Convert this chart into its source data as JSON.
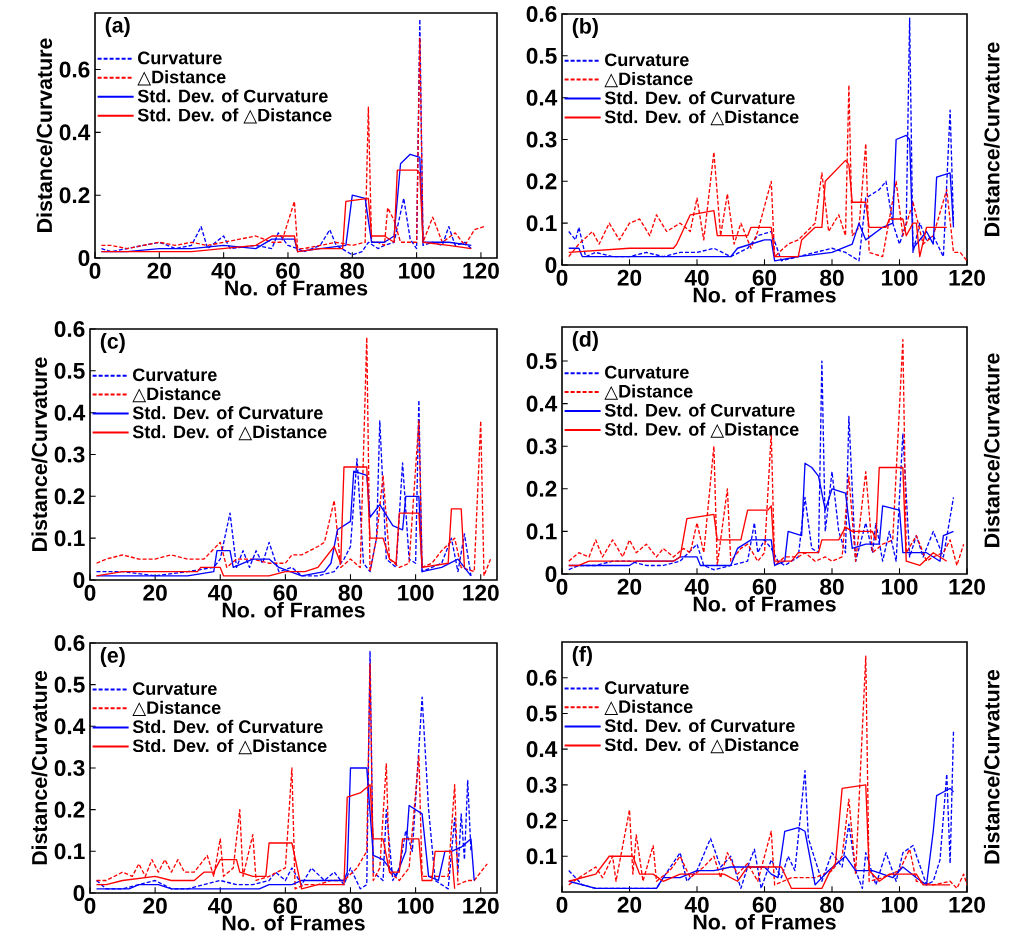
{
  "chart_data": [
    {
      "type": "line",
      "annotations": [
        "(a)"
      ],
      "xlabel": "No. of Frames",
      "ylabel": "Distance/Curvature",
      "xlim": [
        0,
        125
      ],
      "ylim": [
        0,
        0.78
      ],
      "xticks": [
        0,
        20,
        40,
        60,
        80,
        100,
        120
      ],
      "yticks": [
        0,
        0.2,
        0.4,
        0.6
      ],
      "legend": "top left",
      "series": [
        {
          "name": "Curvature",
          "color": "#0000ff",
          "line_style": "dashed",
          "x": [
            2,
            5,
            10,
            15,
            20,
            25,
            30,
            33,
            35,
            40,
            42,
            50,
            55,
            57,
            60,
            63,
            65,
            70,
            73,
            75,
            80,
            83,
            85,
            88,
            90,
            93,
            96,
            98,
            100,
            101,
            102,
            105,
            108,
            110,
            112,
            115,
            117
          ],
          "values": [
            0.03,
            0.02,
            0.03,
            0.04,
            0.05,
            0.03,
            0.04,
            0.1,
            0.03,
            0.07,
            0.03,
            0.04,
            0.03,
            0.08,
            0.04,
            0.03,
            0.02,
            0.04,
            0.09,
            0.04,
            0.01,
            0.02,
            0.05,
            0.03,
            0.04,
            0.05,
            0.19,
            0.06,
            0.03,
            0.76,
            0.04,
            0.05,
            0.04,
            0.1,
            0.04,
            0.05,
            0.03
          ]
        },
        {
          "name": "△Distance",
          "color": "#ff0000",
          "line_style": "dashed",
          "x": [
            2,
            5,
            10,
            15,
            20,
            25,
            30,
            35,
            40,
            45,
            50,
            55,
            58,
            62,
            63,
            65,
            70,
            75,
            80,
            84,
            85,
            86,
            88,
            90,
            91,
            93,
            95,
            100,
            101,
            102,
            105,
            108,
            112,
            115,
            118,
            121
          ],
          "values": [
            0.04,
            0.04,
            0.03,
            0.04,
            0.05,
            0.04,
            0.05,
            0.04,
            0.05,
            0.06,
            0.07,
            0.05,
            0.05,
            0.18,
            0.03,
            0.03,
            0.04,
            0.05,
            0.04,
            0.05,
            0.48,
            0.05,
            0.05,
            0.04,
            0.16,
            0.12,
            0.05,
            0.05,
            0.7,
            0.05,
            0.13,
            0.05,
            0.08,
            0.04,
            0.09,
            0.1
          ]
        },
        {
          "name": "Std. Dev. of Curvature",
          "color": "#0000ff",
          "line_style": "solid",
          "x": [
            2,
            10,
            20,
            30,
            40,
            50,
            55,
            62,
            63,
            70,
            78,
            80,
            84,
            86,
            90,
            93,
            95,
            98,
            101,
            102,
            110,
            117
          ],
          "values": [
            0.02,
            0.02,
            0.03,
            0.03,
            0.04,
            0.03,
            0.06,
            0.06,
            0.02,
            0.03,
            0.04,
            0.2,
            0.19,
            0.05,
            0.05,
            0.07,
            0.3,
            0.33,
            0.32,
            0.05,
            0.05,
            0.04
          ]
        },
        {
          "name": "Std. Dev. of △Distance",
          "color": "#ff0000",
          "line_style": "solid",
          "x": [
            2,
            10,
            20,
            30,
            40,
            50,
            55,
            62,
            63,
            70,
            77,
            78,
            85,
            86,
            90,
            93,
            94,
            100,
            101,
            102,
            110,
            117
          ],
          "values": [
            0.02,
            0.02,
            0.02,
            0.02,
            0.03,
            0.04,
            0.07,
            0.07,
            0.02,
            0.03,
            0.03,
            0.18,
            0.19,
            0.07,
            0.07,
            0.05,
            0.28,
            0.28,
            0.27,
            0.05,
            0.04,
            0.03
          ]
        }
      ]
    },
    {
      "type": "line",
      "annotations": [
        "(b)"
      ],
      "xlabel": "No. of Frames",
      "ylabel": "Distance/Curvature",
      "xlim": [
        0,
        120
      ],
      "ylim": [
        0,
        0.6
      ],
      "xticks": [
        0,
        20,
        40,
        60,
        80,
        100,
        120
      ],
      "yticks": [
        0,
        0.1,
        0.2,
        0.3,
        0.4,
        0.5,
        0.6
      ],
      "legend": "top left",
      "series": [
        {
          "name": "Curvature",
          "color": "#0000ff",
          "line_style": "dashed",
          "x": [
            2,
            4,
            5,
            7,
            10,
            15,
            20,
            25,
            30,
            35,
            40,
            45,
            50,
            55,
            58,
            62,
            65,
            70,
            75,
            80,
            84,
            88,
            90,
            92,
            94,
            96,
            98,
            100,
            102,
            103,
            104,
            106,
            108,
            110,
            113,
            115,
            116
          ],
          "values": [
            0.08,
            0.06,
            0.09,
            0.02,
            0.03,
            0.02,
            0.02,
            0.03,
            0.02,
            0.03,
            0.03,
            0.04,
            0.02,
            0.04,
            0.07,
            0.08,
            0.01,
            0.02,
            0.03,
            0.04,
            0.03,
            0.01,
            0.16,
            0.17,
            0.18,
            0.2,
            0.1,
            0.05,
            0.1,
            0.59,
            0.03,
            0.1,
            0.06,
            0.07,
            0.02,
            0.37,
            0.1
          ]
        },
        {
          "name": "△Distance",
          "color": "#ff0000",
          "line_style": "dashed",
          "x": [
            2,
            5,
            9,
            11,
            14,
            17,
            20,
            23,
            26,
            28,
            31,
            35,
            38,
            40,
            42,
            45,
            47,
            49,
            51,
            53,
            56,
            58,
            62,
            63,
            67,
            70,
            75,
            77,
            79,
            82,
            84,
            85,
            86,
            88,
            90,
            91,
            95,
            99,
            101,
            104,
            107,
            110,
            114,
            116,
            118,
            120
          ],
          "values": [
            0.02,
            0.05,
            0.08,
            0.05,
            0.1,
            0.06,
            0.1,
            0.11,
            0.07,
            0.12,
            0.08,
            0.1,
            0.08,
            0.16,
            0.06,
            0.27,
            0.07,
            0.17,
            0.05,
            0.1,
            0.04,
            0.08,
            0.2,
            0.02,
            0.05,
            0.06,
            0.1,
            0.22,
            0.08,
            0.12,
            0.07,
            0.43,
            0.07,
            0.09,
            0.29,
            0.03,
            0.02,
            0.2,
            0.07,
            0.15,
            0.05,
            0.07,
            0.18,
            0.03,
            0.03,
            0.01
          ]
        },
        {
          "name": "Std. Dev. of Curvature",
          "color": "#0000ff",
          "line_style": "solid",
          "x": [
            2,
            5,
            6,
            20,
            40,
            50,
            52,
            60,
            62,
            63,
            70,
            80,
            86,
            88,
            90,
            95,
            98,
            99,
            102,
            103,
            104,
            108,
            110,
            111,
            115,
            116
          ],
          "values": [
            0.04,
            0.04,
            0.02,
            0.02,
            0.02,
            0.02,
            0.04,
            0.06,
            0.06,
            0.01,
            0.02,
            0.03,
            0.05,
            0.1,
            0.06,
            0.09,
            0.1,
            0.3,
            0.31,
            0.3,
            0.04,
            0.08,
            0.05,
            0.21,
            0.22,
            0.09
          ]
        },
        {
          "name": "Std. Dev. of △Distance",
          "color": "#ff0000",
          "line_style": "solid",
          "x": [
            2,
            20,
            33,
            34,
            38,
            45,
            46,
            55,
            56,
            62,
            63,
            70,
            71,
            75,
            77,
            78,
            84,
            85,
            86,
            90,
            91,
            96,
            97,
            101,
            102,
            104,
            105,
            106,
            108,
            114
          ],
          "values": [
            0.03,
            0.04,
            0.04,
            0.05,
            0.12,
            0.13,
            0.07,
            0.07,
            0.09,
            0.09,
            0.02,
            0.02,
            0.06,
            0.09,
            0.09,
            0.2,
            0.25,
            0.24,
            0.15,
            0.15,
            0.09,
            0.09,
            0.11,
            0.11,
            0.07,
            0.1,
            0.1,
            0.02,
            0.09,
            0.09
          ]
        }
      ]
    },
    {
      "type": "line",
      "annotations": [
        "(c)"
      ],
      "xlabel": "No. of Frames",
      "ylabel": "Distance/Curvature",
      "xlim": [
        0,
        125
      ],
      "ylim": [
        0,
        0.6
      ],
      "xticks": [
        0,
        20,
        40,
        60,
        80,
        100,
        120
      ],
      "yticks": [
        0,
        0.1,
        0.2,
        0.3,
        0.4,
        0.5,
        0.6
      ],
      "legend": "top left",
      "series": [
        {
          "name": "Curvature",
          "color": "#0000ff",
          "line_style": "dashed",
          "x": [
            2,
            10,
            20,
            30,
            38,
            40,
            43,
            45,
            47,
            49,
            51,
            53,
            55,
            58,
            62,
            65,
            70,
            75,
            78,
            80,
            82,
            84,
            86,
            88,
            89,
            91,
            94,
            96,
            98,
            100,
            101,
            102,
            105,
            108,
            111,
            113,
            115,
            117
          ],
          "values": [
            0.02,
            0.02,
            0.01,
            0.02,
            0.03,
            0.05,
            0.16,
            0.03,
            0.07,
            0.03,
            0.07,
            0.04,
            0.09,
            0.02,
            0.03,
            0.01,
            0.01,
            0.02,
            0.05,
            0.08,
            0.29,
            0.04,
            0.02,
            0.1,
            0.38,
            0.05,
            0.03,
            0.28,
            0.05,
            0.04,
            0.43,
            0.02,
            0.03,
            0.04,
            0.1,
            0.02,
            0.11,
            0.01
          ]
        },
        {
          "name": "△Distance",
          "color": "#ff0000",
          "line_style": "dashed",
          "x": [
            2,
            5,
            10,
            15,
            20,
            25,
            30,
            35,
            40,
            42,
            45,
            50,
            55,
            60,
            62,
            65,
            70,
            72,
            75,
            77,
            80,
            83,
            85,
            86,
            88,
            90,
            92,
            95,
            98,
            101,
            102,
            105,
            108,
            112,
            114,
            118,
            120,
            121,
            123
          ],
          "values": [
            0.04,
            0.05,
            0.06,
            0.05,
            0.05,
            0.06,
            0.05,
            0.05,
            0.09,
            0.03,
            0.05,
            0.05,
            0.04,
            0.04,
            0.06,
            0.06,
            0.08,
            0.09,
            0.19,
            0.03,
            0.05,
            0.03,
            0.58,
            0.02,
            0.1,
            0.25,
            0.05,
            0.03,
            0.04,
            0.38,
            0.03,
            0.04,
            0.07,
            0.1,
            0.03,
            0.02,
            0.38,
            0.01,
            0.05
          ]
        },
        {
          "name": "Std. Dev. of Curvature",
          "color": "#0000ff",
          "line_style": "solid",
          "x": [
            2,
            20,
            30,
            38,
            39,
            43,
            44,
            50,
            55,
            58,
            65,
            72,
            74,
            76,
            80,
            81,
            85,
            86,
            89,
            93,
            96,
            97,
            101,
            102,
            108,
            113,
            117
          ],
          "values": [
            0.01,
            0.01,
            0.01,
            0.02,
            0.07,
            0.07,
            0.03,
            0.05,
            0.05,
            0.03,
            0.01,
            0.02,
            0.04,
            0.12,
            0.14,
            0.26,
            0.25,
            0.15,
            0.18,
            0.13,
            0.12,
            0.2,
            0.2,
            0.02,
            0.03,
            0.05,
            0.01
          ]
        },
        {
          "name": "Std. Dev. of △Distance",
          "color": "#ff0000",
          "line_style": "solid",
          "x": [
            2,
            10,
            33,
            34,
            40,
            41,
            55,
            60,
            66,
            70,
            75,
            77,
            78,
            85,
            86,
            90,
            92,
            94,
            95,
            101,
            102,
            110,
            111,
            114,
            115
          ],
          "values": [
            0.01,
            0.02,
            0.02,
            0.03,
            0.03,
            0.01,
            0.01,
            0.02,
            0.02,
            0.03,
            0.08,
            0.04,
            0.27,
            0.27,
            0.1,
            0.1,
            0.05,
            0.04,
            0.16,
            0.16,
            0.03,
            0.04,
            0.17,
            0.17,
            0.03
          ]
        }
      ]
    },
    {
      "type": "line",
      "annotations": [
        "(d)"
      ],
      "xlabel": "No. of Frames",
      "ylabel": "Distance/Curvature",
      "xlim": [
        0,
        120
      ],
      "ylim": [
        0,
        0.58
      ],
      "xticks": [
        0,
        20,
        40,
        60,
        80,
        100,
        120
      ],
      "yticks": [
        0,
        0.1,
        0.2,
        0.3,
        0.4,
        0.5
      ],
      "legend": "top left",
      "series": [
        {
          "name": "Curvature",
          "color": "#0000ff",
          "line_style": "dashed",
          "x": [
            2,
            5,
            10,
            15,
            20,
            25,
            30,
            35,
            40,
            42,
            45,
            50,
            55,
            57,
            58,
            60,
            62,
            64,
            66,
            70,
            72,
            74,
            76,
            77,
            78,
            80,
            82,
            84,
            85,
            87,
            90,
            92,
            93,
            95,
            97,
            99,
            101,
            103,
            105,
            107,
            110,
            113,
            116
          ],
          "values": [
            0.01,
            0.02,
            0.02,
            0.03,
            0.03,
            0.02,
            0.02,
            0.03,
            0.07,
            0.02,
            0.01,
            0.02,
            0.03,
            0.12,
            0.05,
            0.08,
            0.06,
            0.03,
            0.02,
            0.04,
            0.18,
            0.06,
            0.05,
            0.5,
            0.1,
            0.24,
            0.1,
            0.05,
            0.37,
            0.03,
            0.12,
            0.05,
            0.12,
            0.03,
            0.1,
            0.03,
            0.33,
            0.04,
            0.09,
            0.04,
            0.1,
            0.04,
            0.18
          ]
        },
        {
          "name": "△Distance",
          "color": "#ff0000",
          "line_style": "dashed",
          "x": [
            2,
            5,
            8,
            10,
            12,
            15,
            18,
            20,
            22,
            25,
            28,
            30,
            33,
            36,
            38,
            40,
            42,
            45,
            46,
            49,
            50,
            53,
            55,
            58,
            60,
            62,
            63,
            66,
            70,
            72,
            75,
            78,
            80,
            83,
            85,
            87,
            90,
            92,
            95,
            98,
            101,
            102,
            105,
            108,
            110,
            113,
            115,
            117,
            119
          ],
          "values": [
            0.03,
            0.05,
            0.04,
            0.08,
            0.04,
            0.08,
            0.04,
            0.08,
            0.05,
            0.07,
            0.04,
            0.06,
            0.04,
            0.06,
            0.05,
            0.12,
            0.05,
            0.3,
            0.02,
            0.2,
            0.03,
            0.06,
            0.07,
            0.03,
            0.05,
            0.33,
            0.02,
            0.04,
            0.04,
            0.05,
            0.03,
            0.04,
            0.03,
            0.04,
            0.23,
            0.03,
            0.24,
            0.05,
            0.07,
            0.08,
            0.55,
            0.05,
            0.09,
            0.03,
            0.04,
            0.05,
            0.08,
            0.02,
            0.07
          ]
        },
        {
          "name": "Std. Dev. of Curvature",
          "color": "#0000ff",
          "line_style": "solid",
          "x": [
            2,
            20,
            22,
            33,
            35,
            40,
            41,
            50,
            52,
            56,
            62,
            63,
            66,
            67,
            71,
            72,
            74,
            76,
            78,
            80,
            84,
            86,
            90,
            94,
            95,
            100,
            101,
            108,
            112,
            113,
            116
          ],
          "values": [
            0.02,
            0.02,
            0.03,
            0.03,
            0.04,
            0.04,
            0.02,
            0.02,
            0.06,
            0.08,
            0.08,
            0.02,
            0.03,
            0.1,
            0.09,
            0.26,
            0.25,
            0.23,
            0.15,
            0.2,
            0.19,
            0.06,
            0.07,
            0.07,
            0.16,
            0.15,
            0.05,
            0.05,
            0.03,
            0.09,
            0.1
          ]
        },
        {
          "name": "Std. Dev. of △Distance",
          "color": "#ff0000",
          "line_style": "solid",
          "x": [
            2,
            5,
            8,
            33,
            35,
            37,
            45,
            46,
            53,
            55,
            61,
            62,
            63,
            68,
            70,
            76,
            77,
            82,
            84,
            86,
            92,
            93,
            94,
            101,
            102,
            106,
            110,
            114
          ],
          "values": [
            0.02,
            0.02,
            0.03,
            0.03,
            0.04,
            0.13,
            0.14,
            0.08,
            0.08,
            0.15,
            0.15,
            0.16,
            0.03,
            0.03,
            0.05,
            0.05,
            0.08,
            0.08,
            0.11,
            0.1,
            0.1,
            0.08,
            0.25,
            0.25,
            0.03,
            0.02,
            0.05,
            0.03
          ]
        }
      ]
    },
    {
      "type": "line",
      "annotations": [
        "(e)"
      ],
      "xlabel": "No. of Frames",
      "ylabel": "Distance/Curvature",
      "xlim": [
        0,
        125
      ],
      "ylim": [
        0,
        0.6
      ],
      "xticks": [
        0,
        20,
        40,
        60,
        80,
        100,
        120
      ],
      "yticks": [
        0,
        0.1,
        0.2,
        0.3,
        0.4,
        0.5,
        0.6
      ],
      "legend": "top left",
      "series": [
        {
          "name": "Curvature",
          "color": "#0000ff",
          "line_style": "dashed",
          "x": [
            2,
            5,
            10,
            15,
            20,
            25,
            30,
            35,
            40,
            45,
            50,
            55,
            57,
            60,
            62,
            65,
            68,
            72,
            75,
            78,
            80,
            83,
            85,
            86,
            87,
            90,
            91,
            93,
            95,
            97,
            99,
            102,
            104,
            106,
            110,
            112,
            113,
            114,
            115,
            116,
            117
          ],
          "values": [
            0.03,
            0.01,
            0.01,
            0.02,
            0.03,
            0.01,
            0.01,
            0.02,
            0.03,
            0.02,
            0.02,
            0.03,
            0.05,
            0.03,
            0.06,
            0.02,
            0.06,
            0.03,
            0.05,
            0.02,
            0.06,
            0.01,
            0.02,
            0.58,
            0.05,
            0.03,
            0.2,
            0.03,
            0.06,
            0.15,
            0.1,
            0.47,
            0.2,
            0.03,
            0.01,
            0.18,
            0.05,
            0.19,
            0.08,
            0.27,
            0.1
          ]
        },
        {
          "name": "△Distance",
          "color": "#ff0000",
          "line_style": "dashed",
          "x": [
            2,
            5,
            10,
            13,
            15,
            17,
            19,
            21,
            23,
            25,
            27,
            29,
            32,
            36,
            38,
            40,
            41,
            44,
            46,
            47,
            50,
            51,
            55,
            60,
            62,
            63,
            66,
            70,
            74,
            78,
            82,
            85,
            86,
            87,
            89,
            91,
            92,
            95,
            98,
            101,
            102,
            106,
            110,
            112,
            113,
            116,
            118,
            122
          ],
          "values": [
            0.03,
            0.03,
            0.05,
            0.04,
            0.07,
            0.04,
            0.08,
            0.05,
            0.08,
            0.05,
            0.08,
            0.05,
            0.05,
            0.09,
            0.04,
            0.13,
            0.04,
            0.06,
            0.2,
            0.04,
            0.14,
            0.03,
            0.04,
            0.06,
            0.3,
            0.01,
            0.02,
            0.02,
            0.03,
            0.03,
            0.06,
            0.1,
            0.55,
            0.03,
            0.06,
            0.31,
            0.05,
            0.03,
            0.06,
            0.33,
            0.04,
            0.04,
            0.04,
            0.26,
            0.02,
            0.03,
            0.03,
            0.07
          ]
        },
        {
          "name": "Std. Dev. of Curvature",
          "color": "#0000ff",
          "line_style": "solid",
          "x": [
            2,
            12,
            15,
            21,
            25,
            52,
            55,
            62,
            65,
            78,
            79,
            80,
            85,
            87,
            90,
            94,
            97,
            98,
            102,
            104,
            107,
            109,
            111,
            114,
            117,
            118
          ],
          "values": [
            0.01,
            0.01,
            0.02,
            0.02,
            0.01,
            0.01,
            0.02,
            0.02,
            0.03,
            0.03,
            0.05,
            0.3,
            0.3,
            0.09,
            0.08,
            0.04,
            0.1,
            0.21,
            0.19,
            0.04,
            0.03,
            0.1,
            0.1,
            0.11,
            0.13,
            0.03
          ]
        },
        {
          "name": "Std. Dev. of △Distance",
          "color": "#ff0000",
          "line_style": "solid",
          "x": [
            2,
            5,
            10,
            20,
            25,
            32,
            35,
            38,
            40,
            45,
            46,
            50,
            54,
            55,
            62,
            65,
            70,
            78,
            79,
            83,
            86,
            87,
            90,
            92,
            95,
            96,
            101,
            102,
            105,
            106,
            111,
            112
          ],
          "values": [
            0.02,
            0.02,
            0.03,
            0.04,
            0.03,
            0.03,
            0.05,
            0.05,
            0.08,
            0.08,
            0.05,
            0.04,
            0.04,
            0.12,
            0.12,
            0.01,
            0.02,
            0.02,
            0.23,
            0.24,
            0.26,
            0.13,
            0.13,
            0.05,
            0.05,
            0.13,
            0.13,
            0.03,
            0.03,
            0.1,
            0.1,
            0.01
          ]
        }
      ]
    },
    {
      "type": "line",
      "annotations": [
        "(f)"
      ],
      "xlabel": "No. of Frames",
      "ylabel": "Distance/Curvature",
      "xlim": [
        0,
        120
      ],
      "ylim": [
        0,
        0.7
      ],
      "xticks": [
        0,
        20,
        40,
        60,
        80,
        100,
        120
      ],
      "yticks": [
        0.1,
        0.2,
        0.3,
        0.4,
        0.5,
        0.6
      ],
      "legend": "top left",
      "series": [
        {
          "name": "Curvature",
          "color": "#0000ff",
          "line_style": "dashed",
          "x": [
            2,
            6,
            10,
            15,
            20,
            25,
            28,
            30,
            35,
            37,
            40,
            44,
            47,
            50,
            53,
            55,
            57,
            59,
            62,
            65,
            67,
            69,
            72,
            73,
            77,
            80,
            83,
            85,
            87,
            89,
            90,
            93,
            96,
            99,
            101,
            104,
            108,
            110,
            112,
            114,
            115,
            116
          ],
          "values": [
            0.06,
            0.02,
            0.01,
            0.01,
            0.01,
            0.01,
            0.01,
            0.04,
            0.11,
            0.03,
            0.06,
            0.15,
            0.07,
            0.1,
            0.01,
            0.07,
            0.12,
            0.01,
            0.09,
            0.04,
            0.1,
            0.06,
            0.34,
            0.15,
            0.03,
            0.11,
            0.07,
            0.19,
            0.06,
            0.01,
            0.11,
            0.02,
            0.11,
            0.03,
            0.11,
            0.13,
            0.02,
            0.03,
            0.09,
            0.33,
            0.08,
            0.45
          ]
        },
        {
          "name": "△Distance",
          "color": "#ff0000",
          "line_style": "dashed",
          "x": [
            2,
            5,
            10,
            12,
            15,
            16,
            18,
            20,
            21,
            22,
            24,
            27,
            28,
            32,
            35,
            38,
            42,
            45,
            47,
            49,
            52,
            55,
            58,
            62,
            63,
            68,
            75,
            80,
            83,
            85,
            87,
            90,
            91,
            95,
            100,
            103,
            105,
            110,
            115,
            117,
            119,
            120
          ],
          "values": [
            0.02,
            0.04,
            0.07,
            0.04,
            0.1,
            0.03,
            0.13,
            0.23,
            0.05,
            0.16,
            0.03,
            0.13,
            0.03,
            0.06,
            0.1,
            0.04,
            0.07,
            0.1,
            0.04,
            0.11,
            0.05,
            0.08,
            0.03,
            0.17,
            0.02,
            0.04,
            0.04,
            0.06,
            0.1,
            0.26,
            0.05,
            0.66,
            0.03,
            0.04,
            0.06,
            0.12,
            0.03,
            0.02,
            0.03,
            0.01,
            0.05,
            0.02
          ]
        },
        {
          "name": "Std. Dev. of Curvature",
          "color": "#0000ff",
          "line_style": "solid",
          "x": [
            2,
            10,
            28,
            30,
            35,
            40,
            45,
            50,
            60,
            62,
            64,
            66,
            70,
            72,
            75,
            79,
            84,
            87,
            92,
            95,
            98,
            101,
            105,
            108,
            110,
            111,
            113,
            115,
            116
          ],
          "values": [
            0.03,
            0.01,
            0.01,
            0.04,
            0.04,
            0.06,
            0.06,
            0.07,
            0.07,
            0.05,
            0.04,
            0.17,
            0.18,
            0.17,
            0.02,
            0.06,
            0.1,
            0.06,
            0.06,
            0.05,
            0.04,
            0.07,
            0.04,
            0.02,
            0.17,
            0.27,
            0.28,
            0.29,
            0.28
          ]
        },
        {
          "name": "Std. Dev. of △Distance",
          "color": "#ff0000",
          "line_style": "solid",
          "x": [
            2,
            10,
            14,
            21,
            23,
            27,
            30,
            35,
            48,
            52,
            55,
            65,
            68,
            77,
            79,
            81,
            83,
            90,
            91,
            94,
            97,
            105,
            107,
            115
          ],
          "values": [
            0.03,
            0.05,
            0.1,
            0.1,
            0.05,
            0.05,
            0.03,
            0.05,
            0.05,
            0.03,
            0.07,
            0.07,
            0.01,
            0.01,
            0.05,
            0.08,
            0.29,
            0.3,
            0.06,
            0.03,
            0.05,
            0.05,
            0.02,
            0.02
          ]
        }
      ]
    }
  ]
}
